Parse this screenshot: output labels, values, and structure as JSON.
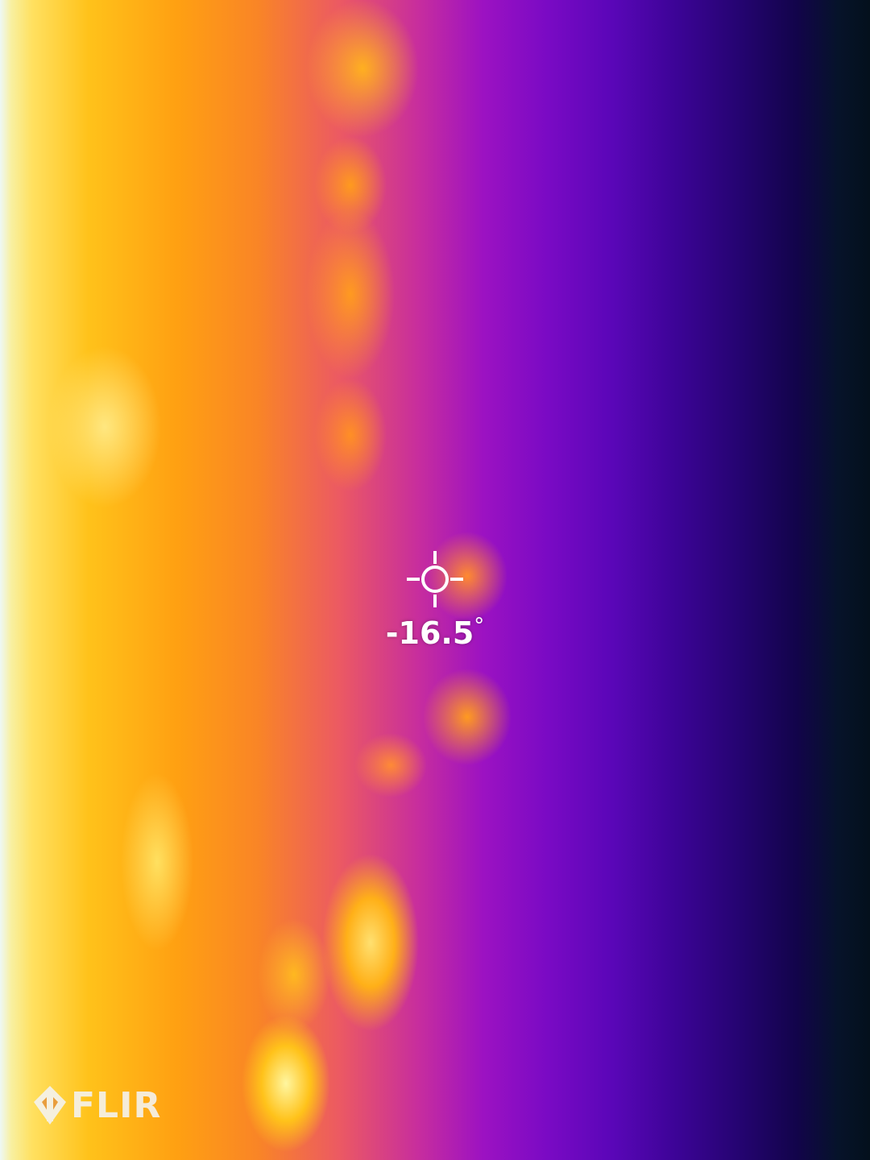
{
  "camera": {
    "brand": "FLIR",
    "palette": "iron",
    "palette_colors": [
      "#eef8f5",
      "#ffe060",
      "#ffa012",
      "#ec5a62",
      "#9c12c2",
      "#5a06b8",
      "#240470",
      "#04101c"
    ]
  },
  "spot_meter": {
    "icon": "crosshair-icon",
    "value": "-16.5",
    "unit": "°"
  },
  "logo": {
    "icon": "flir-diamond-icon",
    "text": "FLIR"
  }
}
